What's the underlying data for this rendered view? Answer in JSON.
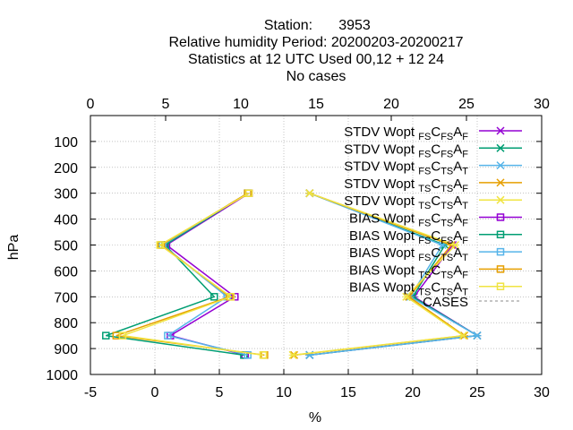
{
  "chart_data": {
    "type": "line",
    "title": {
      "station_label": "Station:",
      "station": "3953",
      "line2": "Relative humidity  Period: 20200203-20200217",
      "line3": "Statistics at 12 UTC  Used  00,12  + 12 24",
      "line4": "No cases"
    },
    "xlabel": "%",
    "ylabel": "hPa",
    "xlim": [
      -5,
      30
    ],
    "x2lim": [
      0,
      30
    ],
    "ylim": [
      1000,
      0
    ],
    "xticks": [
      -5,
      0,
      5,
      10,
      15,
      20,
      25,
      30
    ],
    "x2ticks": [
      0,
      5,
      10,
      15,
      20,
      25,
      30
    ],
    "yticks": [
      100,
      200,
      300,
      400,
      500,
      600,
      700,
      800,
      900,
      1000
    ],
    "grid": true,
    "legend_position": "top-right",
    "levels": [
      300,
      500,
      700,
      850,
      925
    ],
    "series": [
      {
        "kind": "STDV",
        "a": "FS",
        "b": "FS",
        "c": "F",
        "marker": "x",
        "color": "#9400d3",
        "x": [
          12.0,
          23.1,
          20.1,
          25.0,
          12.0
        ]
      },
      {
        "kind": "STDV",
        "a": "FS",
        "b": "FS",
        "c": "F",
        "marker": "x",
        "color": "#009e73",
        "x": [
          12.0,
          22.5,
          20.0,
          25.0,
          12.0
        ]
      },
      {
        "kind": "STDV",
        "a": "FS",
        "b": "TS",
        "c": "T",
        "marker": "x",
        "color": "#56b4e9",
        "x": [
          12.0,
          22.3,
          19.8,
          25.0,
          12.0
        ]
      },
      {
        "kind": "STDV",
        "a": "TS",
        "b": "TS",
        "c": "F",
        "marker": "x",
        "color": "#e69f00",
        "x": [
          12.0,
          23.0,
          19.7,
          24.0,
          10.8
        ]
      },
      {
        "kind": "STDV",
        "a": "TS",
        "b": "TS",
        "c": "T",
        "marker": "x",
        "color": "#f0e442",
        "x": [
          12.0,
          23.3,
          19.5,
          23.9,
          10.7
        ]
      },
      {
        "kind": "BIAS",
        "a": "FS",
        "b": "TS",
        "c": "F",
        "marker": "square",
        "color": "#9400d3",
        "x": [
          7.3,
          0.9,
          6.2,
          1.2,
          7.0
        ]
      },
      {
        "kind": "BIAS",
        "a": "FS",
        "b": "FS",
        "c": "F",
        "marker": "square",
        "color": "#009e73",
        "x": [
          7.2,
          0.8,
          4.6,
          -3.8,
          6.9
        ]
      },
      {
        "kind": "BIAS",
        "a": "FS",
        "b": "TS",
        "c": "T",
        "marker": "square",
        "color": "#56b4e9",
        "x": [
          7.2,
          0.6,
          5.6,
          1.0,
          7.2
        ]
      },
      {
        "kind": "BIAS",
        "a": "TS",
        "b": "TS",
        "c": "F",
        "marker": "square",
        "color": "#e69f00",
        "x": [
          7.2,
          0.5,
          5.8,
          -3.0,
          8.5
        ]
      },
      {
        "kind": "BIAS",
        "a": "TS",
        "b": "TS",
        "c": "T",
        "marker": "square",
        "color": "#f0e442",
        "x": [
          7.3,
          0.4,
          5.9,
          -2.5,
          8.4
        ]
      }
    ],
    "legend_word": "Wopt",
    "legend_mid": "C",
    "legend_end": "A",
    "cases_label": "CASES",
    "cases_color": "#a0a0a0"
  }
}
